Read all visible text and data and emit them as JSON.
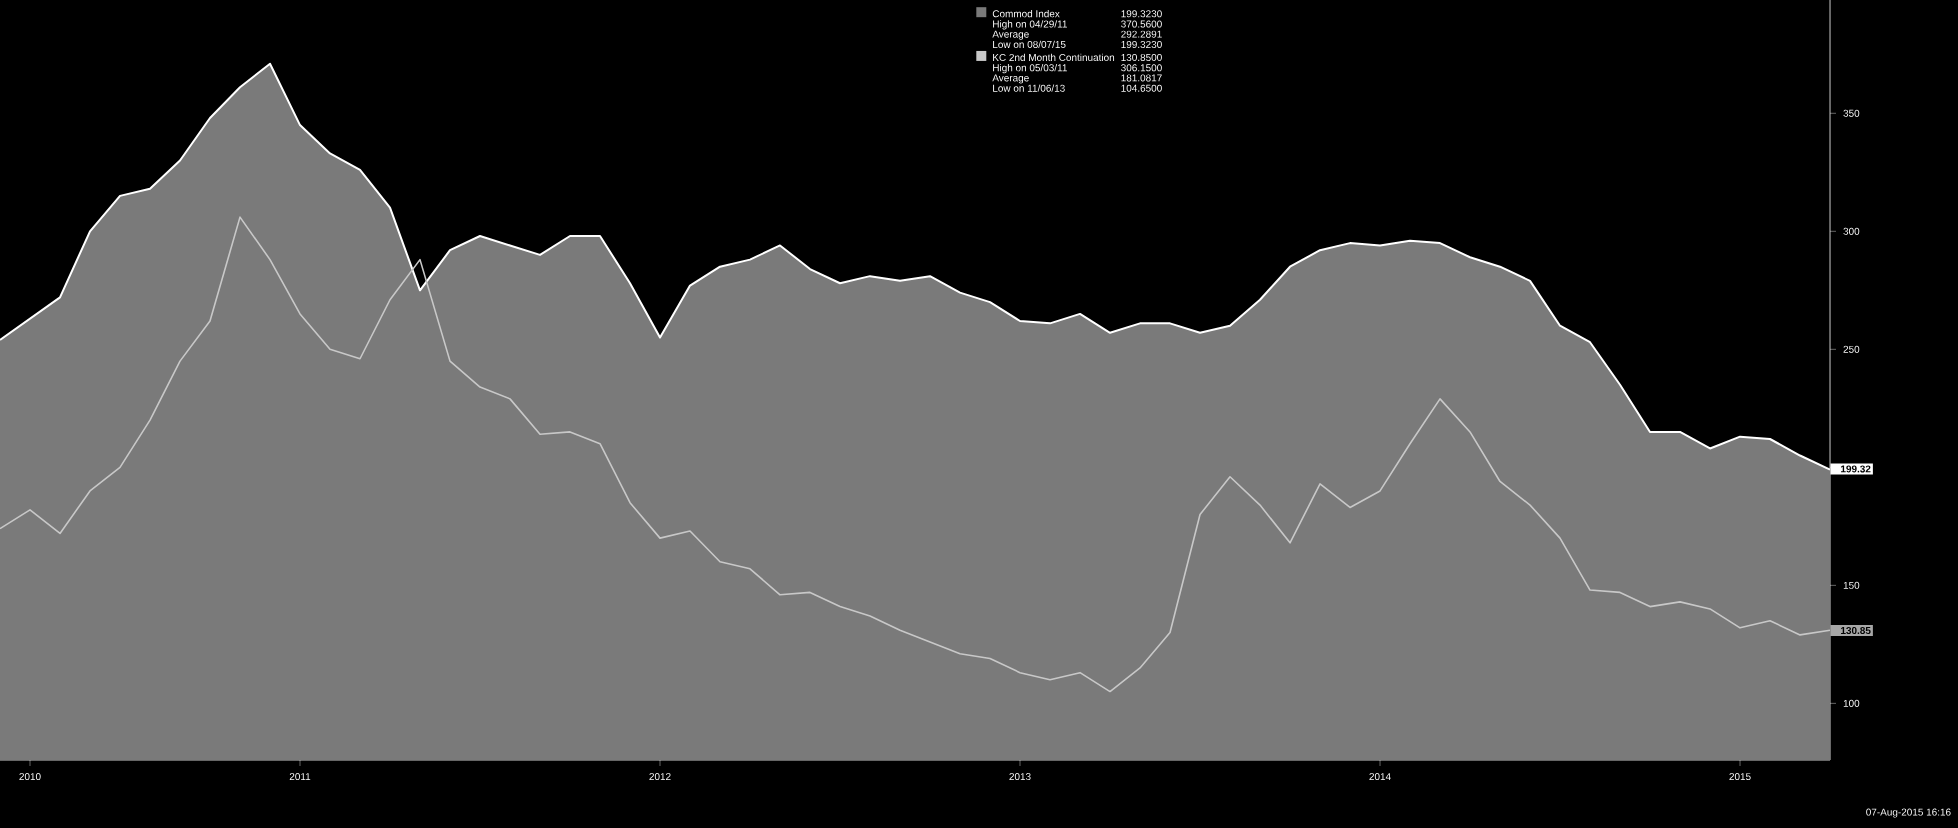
{
  "chart_data": {
    "type": "line",
    "x": [
      "2010-03",
      "2010-04",
      "2010-05",
      "2010-06",
      "2010-07",
      "2010-08",
      "2010-09",
      "2010-10",
      "2010-11",
      "2010-12",
      "2011-01",
      "2011-02",
      "2011-03",
      "2011-04",
      "2011-05",
      "2011-06",
      "2011-07",
      "2011-08",
      "2011-09",
      "2011-10",
      "2011-11",
      "2011-12",
      "2012-01",
      "2012-02",
      "2012-03",
      "2012-04",
      "2012-05",
      "2012-06",
      "2012-07",
      "2012-08",
      "2012-09",
      "2012-10",
      "2012-11",
      "2012-12",
      "2013-01",
      "2013-02",
      "2013-03",
      "2013-04",
      "2013-05",
      "2013-06",
      "2013-07",
      "2013-08",
      "2013-09",
      "2013-10",
      "2013-11",
      "2013-12",
      "2014-01",
      "2014-02",
      "2014-03",
      "2014-04",
      "2014-05",
      "2014-06",
      "2014-07",
      "2014-08",
      "2014-09",
      "2014-10",
      "2014-11",
      "2014-12",
      "2015-01",
      "2015-02",
      "2015-03",
      "2015-04"
    ],
    "series": [
      {
        "name": "Commod Index",
        "type": "area",
        "color": "#7a7a7a",
        "values": [
          254,
          263,
          272,
          300,
          315,
          318,
          330,
          348,
          361,
          371,
          345,
          333,
          326,
          310,
          275,
          292,
          298,
          294,
          290,
          298,
          298,
          278,
          255,
          277,
          285,
          288,
          294,
          284,
          278,
          281,
          279,
          281,
          274,
          270,
          262,
          261,
          265,
          257,
          261,
          261,
          257,
          260,
          271,
          285,
          292,
          295,
          294,
          296,
          295,
          289,
          285,
          279,
          260,
          253,
          235,
          215,
          215,
          208,
          213,
          212,
          205,
          199
        ]
      },
      {
        "name": "KC 2nd Month Continuation",
        "color": "#c8c8c8",
        "values": [
          174,
          182,
          172,
          190,
          200,
          220,
          245,
          262,
          306,
          288,
          265,
          250,
          246,
          271,
          288,
          245,
          234,
          229,
          214,
          215,
          210,
          185,
          170,
          173,
          160,
          157,
          146,
          147,
          141,
          137,
          131,
          126,
          121,
          119,
          113,
          110,
          113,
          105,
          115,
          130,
          180,
          196,
          184,
          168,
          193,
          183,
          190,
          210,
          229,
          215,
          194,
          184,
          170,
          148,
          147,
          141,
          143,
          140,
          132,
          135,
          129,
          131
        ]
      }
    ],
    "xlim": [
      "2010-03",
      "2015-04"
    ],
    "xticks": [
      {
        "value": "2010-04",
        "label": "2010"
      },
      {
        "value": "2011-01",
        "label": "2011"
      },
      {
        "value": "2012-01",
        "label": "2012"
      },
      {
        "value": "2013-01",
        "label": "2013"
      },
      {
        "value": "2014-01",
        "label": "2014"
      },
      {
        "value": "2015-01",
        "label": "2015"
      }
    ],
    "ylim": [
      76,
      398
    ],
    "yticks": [
      100,
      150,
      {
        "value": 200,
        "label": null
      },
      250,
      300,
      350
    ],
    "legend": "top",
    "annotations": [
      "199.3230",
      "High on 04/29/11",
      "370.5600",
      "Average",
      "292.2891",
      "Low on 08/07/15",
      "199.3230",
      "130.8500",
      "High on 05/03/11",
      "306.1500",
      "Average",
      "181.0817",
      "Low on 11/06/13",
      "104.6500",
      "07-Aug-2015 16:16",
      {
        "text": "199.32",
        "x": "2015-04",
        "y": 199.32
      },
      {
        "text": "130.85",
        "x": "2015-04",
        "y": 130.85
      }
    ]
  }
}
